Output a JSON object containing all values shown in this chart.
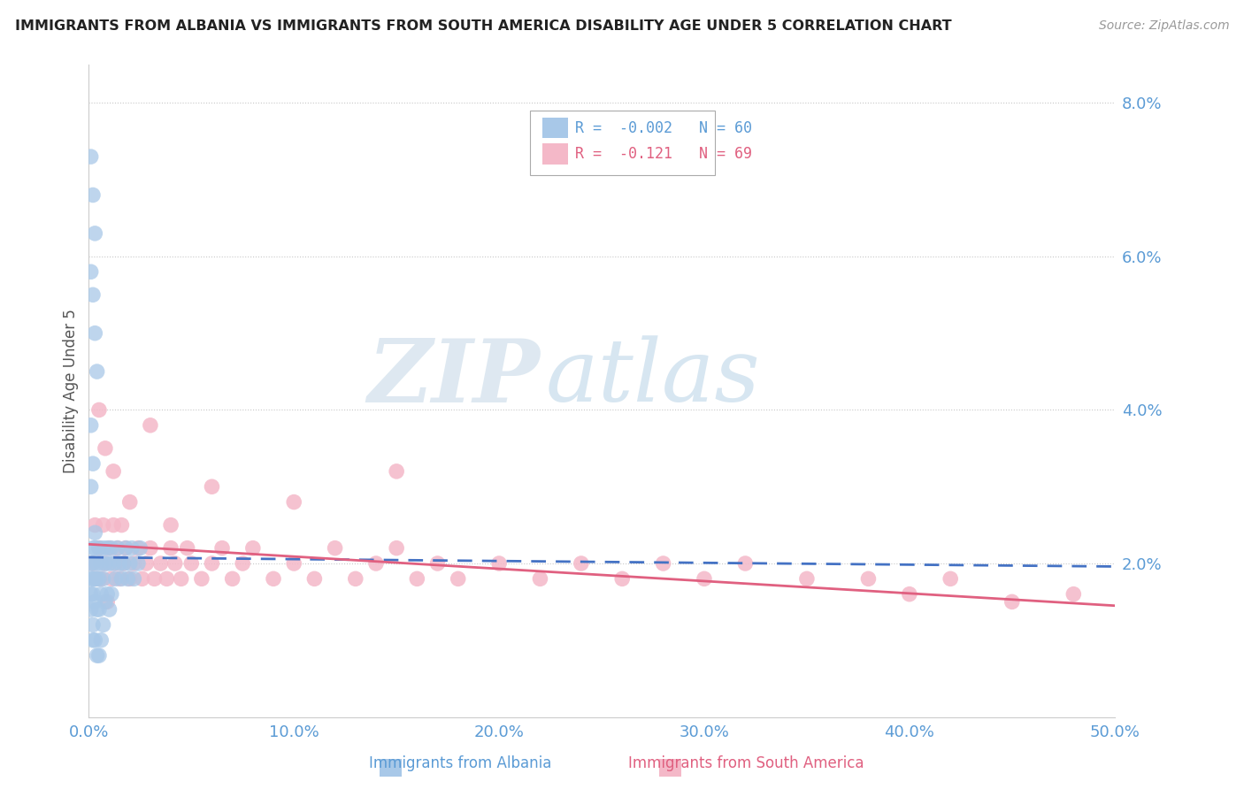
{
  "title": "IMMIGRANTS FROM ALBANIA VS IMMIGRANTS FROM SOUTH AMERICA DISABILITY AGE UNDER 5 CORRELATION CHART",
  "source": "Source: ZipAtlas.com",
  "ylabel": "Disability Age Under 5",
  "xlim": [
    0.0,
    0.5
  ],
  "ylim": [
    0.0,
    0.085
  ],
  "yticks": [
    0.0,
    0.02,
    0.04,
    0.06,
    0.08
  ],
  "ytick_labels": [
    "",
    "2.0%",
    "4.0%",
    "6.0%",
    "8.0%"
  ],
  "xticks": [
    0.0,
    0.1,
    0.2,
    0.3,
    0.4,
    0.5
  ],
  "xtick_labels": [
    "0.0%",
    "10.0%",
    "20.0%",
    "30.0%",
    "40.0%",
    "50.0%"
  ],
  "albania_color": "#a8c8e8",
  "albania_line_color": "#4472c4",
  "south_america_color": "#f4b8c8",
  "south_america_line_color": "#e06080",
  "albania_R": -0.002,
  "albania_N": 60,
  "south_america_R": -0.121,
  "south_america_N": 69,
  "legend_label_1": "Immigrants from Albania",
  "legend_label_2": "Immigrants from South America",
  "watermark_zip": "ZIP",
  "watermark_atlas": "atlas",
  "background_color": "#ffffff",
  "albania_x": [
    0.001,
    0.001,
    0.001,
    0.001,
    0.002,
    0.002,
    0.002,
    0.002,
    0.002,
    0.002,
    0.003,
    0.003,
    0.003,
    0.003,
    0.003,
    0.004,
    0.004,
    0.004,
    0.004,
    0.005,
    0.005,
    0.005,
    0.005,
    0.006,
    0.006,
    0.006,
    0.007,
    0.007,
    0.007,
    0.008,
    0.008,
    0.009,
    0.009,
    0.01,
    0.01,
    0.011,
    0.011,
    0.012,
    0.013,
    0.014,
    0.015,
    0.016,
    0.017,
    0.018,
    0.019,
    0.02,
    0.021,
    0.022,
    0.024,
    0.025,
    0.001,
    0.002,
    0.003,
    0.001,
    0.002,
    0.003,
    0.004,
    0.001,
    0.002,
    0.001
  ],
  "albania_y": [
    0.02,
    0.018,
    0.016,
    0.014,
    0.022,
    0.02,
    0.018,
    0.016,
    0.012,
    0.01,
    0.024,
    0.022,
    0.018,
    0.015,
    0.01,
    0.02,
    0.018,
    0.014,
    0.008,
    0.022,
    0.018,
    0.014,
    0.008,
    0.02,
    0.016,
    0.01,
    0.022,
    0.018,
    0.012,
    0.02,
    0.015,
    0.022,
    0.016,
    0.02,
    0.014,
    0.022,
    0.016,
    0.02,
    0.018,
    0.022,
    0.02,
    0.018,
    0.02,
    0.022,
    0.018,
    0.02,
    0.022,
    0.018,
    0.02,
    0.022,
    0.073,
    0.068,
    0.063,
    0.058,
    0.055,
    0.05,
    0.045,
    0.038,
    0.033,
    0.03
  ],
  "south_america_x": [
    0.002,
    0.003,
    0.004,
    0.005,
    0.006,
    0.007,
    0.008,
    0.009,
    0.01,
    0.011,
    0.012,
    0.013,
    0.014,
    0.015,
    0.016,
    0.017,
    0.018,
    0.02,
    0.022,
    0.024,
    0.026,
    0.028,
    0.03,
    0.032,
    0.035,
    0.038,
    0.04,
    0.042,
    0.045,
    0.048,
    0.05,
    0.055,
    0.06,
    0.065,
    0.07,
    0.075,
    0.08,
    0.09,
    0.1,
    0.11,
    0.12,
    0.13,
    0.14,
    0.15,
    0.16,
    0.17,
    0.18,
    0.2,
    0.22,
    0.24,
    0.26,
    0.28,
    0.3,
    0.32,
    0.35,
    0.38,
    0.4,
    0.42,
    0.45,
    0.48,
    0.005,
    0.008,
    0.012,
    0.02,
    0.03,
    0.04,
    0.06,
    0.1,
    0.15
  ],
  "south_america_y": [
    0.02,
    0.025,
    0.018,
    0.022,
    0.018,
    0.025,
    0.02,
    0.015,
    0.022,
    0.018,
    0.025,
    0.02,
    0.022,
    0.018,
    0.025,
    0.02,
    0.022,
    0.018,
    0.02,
    0.022,
    0.018,
    0.02,
    0.022,
    0.018,
    0.02,
    0.018,
    0.022,
    0.02,
    0.018,
    0.022,
    0.02,
    0.018,
    0.02,
    0.022,
    0.018,
    0.02,
    0.022,
    0.018,
    0.02,
    0.018,
    0.022,
    0.018,
    0.02,
    0.022,
    0.018,
    0.02,
    0.018,
    0.02,
    0.018,
    0.02,
    0.018,
    0.02,
    0.018,
    0.02,
    0.018,
    0.018,
    0.016,
    0.018,
    0.015,
    0.016,
    0.04,
    0.035,
    0.032,
    0.028,
    0.038,
    0.025,
    0.03,
    0.028,
    0.032
  ],
  "albania_trend_x": [
    0.0,
    0.5
  ],
  "albania_trend_y": [
    0.0208,
    0.0196
  ],
  "sa_trend_x": [
    0.0,
    0.5
  ],
  "sa_trend_y": [
    0.0225,
    0.0145
  ]
}
